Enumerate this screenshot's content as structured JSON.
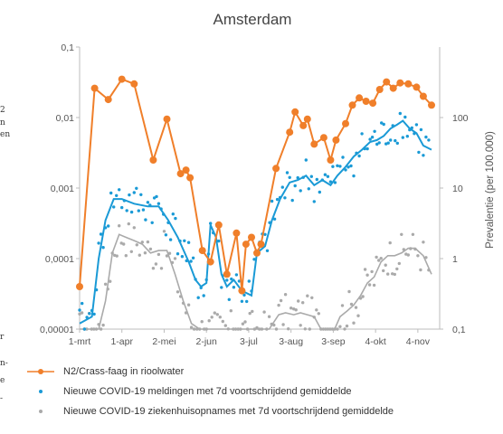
{
  "edge_fragments": [
    "2",
    "n",
    "en",
    "r",
    "n-",
    "e",
    "-"
  ],
  "chart_data": {
    "type": "line",
    "title": "Amsterdam",
    "xlabel": "",
    "ylabel": "",
    "y2label": "Prevalentie (per 100.000)",
    "x_ticks": [
      "1-mrt",
      "1-apr",
      "2-mei",
      "2-jun",
      "3-jul",
      "3-aug",
      "3-sep",
      "4-okt",
      "4-nov"
    ],
    "y_ticks": [
      "0,1",
      "0,01",
      "0,001",
      "0,0001",
      "0,00001"
    ],
    "y2_ticks": [
      "100",
      "10",
      "1",
      "0,1"
    ],
    "y_scale": "log",
    "ylim": [
      1e-05,
      0.1
    ],
    "y2lim": [
      0.1,
      1000
    ],
    "grid": "off",
    "legend_position": "bottom",
    "series": [
      {
        "name": "N2/Crass-faag in rioolwater",
        "axis": "left",
        "color": "#f07f2a",
        "style": "line-markers",
        "x": [
          "2020-03-01",
          "2020-03-12",
          "2020-03-22",
          "2020-04-01",
          "2020-04-10",
          "2020-04-24",
          "2020-05-04",
          "2020-05-14",
          "2020-05-18",
          "2020-05-21",
          "2020-05-30",
          "2020-06-05",
          "2020-06-11",
          "2020-06-17",
          "2020-06-24",
          "2020-06-28",
          "2020-07-01",
          "2020-07-05",
          "2020-07-09",
          "2020-07-12",
          "2020-07-23",
          "2020-08-02",
          "2020-08-06",
          "2020-08-12",
          "2020-08-15",
          "2020-08-20",
          "2020-08-27",
          "2020-09-01",
          "2020-09-05",
          "2020-09-12",
          "2020-09-17",
          "2020-09-22",
          "2020-09-27",
          "2020-10-02",
          "2020-10-07",
          "2020-10-12",
          "2020-10-17",
          "2020-10-22",
          "2020-10-28",
          "2020-11-03",
          "2020-11-08",
          "2020-11-14"
        ],
        "y": [
          4e-05,
          0.026,
          0.018,
          0.035,
          0.03,
          0.0025,
          0.0095,
          0.0016,
          0.0018,
          0.0014,
          0.00013,
          9e-05,
          0.0003,
          6e-05,
          0.00023,
          3.5e-05,
          0.00016,
          0.0002,
          0.00012,
          0.00016,
          0.0019,
          0.0062,
          0.012,
          0.0077,
          0.0095,
          0.0042,
          0.0052,
          0.0025,
          0.0048,
          0.0082,
          0.015,
          0.019,
          0.017,
          0.016,
          0.025,
          0.032,
          0.026,
          0.031,
          0.03,
          0.027,
          0.02,
          0.015
        ]
      },
      {
        "name": "Nieuwe COVID-19 meldingen met 7d voortschrijdend gemiddelde",
        "axis": "right",
        "color": "#1a9ad6",
        "style": "line-and-daily-dots",
        "x": [
          "2020-03-01",
          "2020-03-10",
          "2020-03-15",
          "2020-03-20",
          "2020-03-26",
          "2020-04-01",
          "2020-04-10",
          "2020-04-20",
          "2020-04-28",
          "2020-05-05",
          "2020-05-12",
          "2020-05-20",
          "2020-05-25",
          "2020-05-29",
          "2020-06-02",
          "2020-06-05",
          "2020-06-09",
          "2020-06-13",
          "2020-06-17",
          "2020-06-22",
          "2020-06-28",
          "2020-07-05",
          "2020-07-09",
          "2020-07-15",
          "2020-07-20",
          "2020-07-26",
          "2020-08-02",
          "2020-08-08",
          "2020-08-14",
          "2020-08-20",
          "2020-08-26",
          "2020-09-01",
          "2020-09-06",
          "2020-09-12",
          "2020-09-18",
          "2020-09-24",
          "2020-09-30",
          "2020-10-05",
          "2020-10-10",
          "2020-10-15",
          "2020-10-20",
          "2020-10-24",
          "2020-10-29",
          "2020-11-03",
          "2020-11-08",
          "2020-11-14"
        ],
        "y": [
          0.12,
          0.15,
          1,
          3.5,
          7,
          7,
          6,
          5.5,
          5.5,
          3.5,
          2,
          0.9,
          0.5,
          0.4,
          0.45,
          3,
          2,
          0.6,
          0.4,
          0.5,
          0.35,
          0.3,
          1.2,
          1.5,
          3.5,
          7,
          12,
          13,
          15,
          11,
          13,
          11,
          15,
          20,
          28,
          35,
          45,
          48,
          55,
          70,
          80,
          90,
          70,
          60,
          40,
          35
        ]
      },
      {
        "name": "Nieuwe COVID-19 ziekenhuisopnames met 7d voortschrijdend gemiddelde",
        "axis": "right",
        "color": "#aaaaaa",
        "style": "line-and-daily-dots",
        "x": [
          "2020-03-01",
          "2020-03-15",
          "2020-03-20",
          "2020-03-25",
          "2020-03-30",
          "2020-04-04",
          "2020-04-10",
          "2020-04-16",
          "2020-04-22",
          "2020-04-28",
          "2020-05-04",
          "2020-05-10",
          "2020-05-16",
          "2020-05-22",
          "2020-05-28",
          "2020-06-02",
          "2020-06-08",
          "2020-06-12",
          "2020-06-16",
          "2020-06-20",
          "2020-07-09",
          "2020-07-18",
          "2020-07-25",
          "2020-07-30",
          "2020-08-05",
          "2020-08-10",
          "2020-08-15",
          "2020-08-20",
          "2020-08-25",
          "2020-08-30",
          "2020-09-04",
          "2020-09-08",
          "2020-09-13",
          "2020-09-18",
          "2020-09-23",
          "2020-09-28",
          "2020-10-03",
          "2020-10-08",
          "2020-10-13",
          "2020-10-18",
          "2020-10-23",
          "2020-10-28",
          "2020-11-02",
          "2020-11-08",
          "2020-11-14"
        ],
        "y": [
          0.1,
          0.1,
          0.25,
          1.2,
          2.2,
          2,
          1.8,
          1.6,
          1.2,
          1.3,
          1.3,
          0.6,
          0.25,
          0.12,
          0.1,
          0.1,
          0.1,
          0.1,
          0.1,
          0.1,
          0.1,
          0.1,
          0.16,
          0.17,
          0.16,
          0.17,
          0.16,
          0.15,
          0.1,
          0.1,
          0.1,
          0.15,
          0.18,
          0.22,
          0.3,
          0.45,
          0.55,
          0.9,
          1.1,
          1.1,
          1.2,
          1.4,
          1.4,
          1.1,
          0.6
        ]
      }
    ]
  }
}
